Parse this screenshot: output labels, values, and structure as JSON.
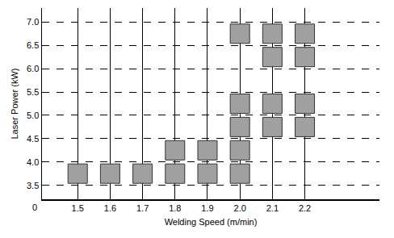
{
  "chart_data": {
    "type": "scatter",
    "x_label": "Welding Speed (m/min)",
    "y_label": "Laser Power (kW)",
    "annotations": [
      "0"
    ],
    "x": [
      1.5,
      1.6,
      1.7,
      1.8,
      1.8,
      1.9,
      1.9,
      2.0,
      2.0,
      2.0,
      2.0,
      2.0,
      2.1,
      2.1,
      2.1,
      2.1,
      2.2,
      2.2,
      2.2,
      2.2
    ],
    "values": [
      3.75,
      3.75,
      3.75,
      3.75,
      4.25,
      3.75,
      4.25,
      3.75,
      4.25,
      4.75,
      5.25,
      6.75,
      4.75,
      5.25,
      6.25,
      6.75,
      4.75,
      5.25,
      6.25,
      6.75
    ],
    "color": "#a0a0a0",
    "marker": "square",
    "xlim": [
      1.39,
      2.43
    ],
    "xticks": [
      1.5,
      1.6,
      1.7,
      1.8,
      1.9,
      2.0,
      2.1,
      2.2
    ],
    "ylim": [
      3.2,
      7.3
    ],
    "yticks": [
      3.5,
      4.0,
      4.5,
      5.0,
      5.5,
      6.0,
      6.5,
      7.0
    ],
    "grid": true
  }
}
